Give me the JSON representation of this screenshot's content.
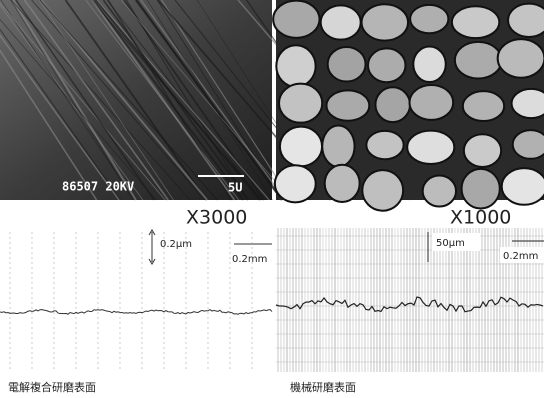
{
  "panels": [
    {
      "image_label": "86507 20KV",
      "scale_bar": "5U",
      "magnification": "X3000",
      "profile_vertical": "0.2μm",
      "profile_horizontal": "0.2mm",
      "caption": "電解複合研磨表面"
    },
    {
      "magnification": "X1000",
      "profile_vertical": "50μm",
      "profile_horizontal": "0.2mm",
      "caption": "機械研磨表面"
    }
  ]
}
